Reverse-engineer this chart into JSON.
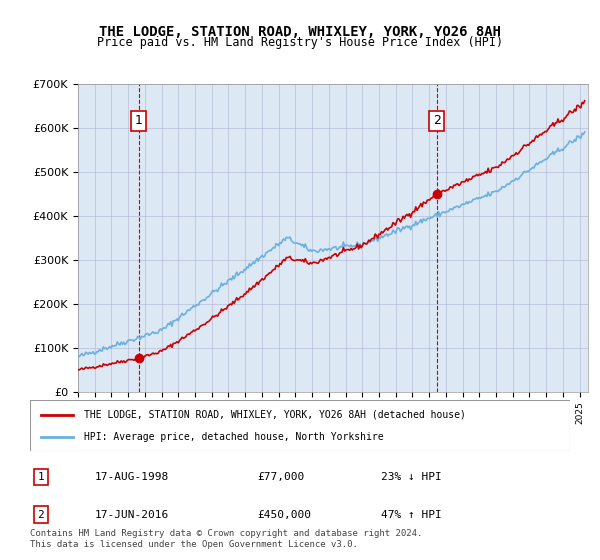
{
  "title1": "THE LODGE, STATION ROAD, WHIXLEY, YORK, YO26 8AH",
  "title2": "Price paid vs. HM Land Registry's House Price Index (HPI)",
  "background_color": "#dce9f5",
  "plot_bg_color": "#dce9f5",
  "hpi_color": "#6ab0e0",
  "price_color": "#cc0000",
  "marker_color": "#cc0000",
  "vline_color": "#cc0000",
  "sale1": {
    "year": 1998.625,
    "price": 77000,
    "label": "1"
  },
  "sale2": {
    "year": 2016.458,
    "price": 450000,
    "label": "2"
  },
  "ylim": [
    0,
    700000
  ],
  "yticks": [
    0,
    100000,
    200000,
    300000,
    400000,
    500000,
    600000,
    700000
  ],
  "ytick_labels": [
    "£0",
    "£100K",
    "£200K",
    "£300K",
    "£400K",
    "£500K",
    "£600K",
    "£700K"
  ],
  "xlim_start": 1995.0,
  "xlim_end": 2025.5,
  "legend_line1": "THE LODGE, STATION ROAD, WHIXLEY, YORK, YO26 8AH (detached house)",
  "legend_line2": "HPI: Average price, detached house, North Yorkshire",
  "table_row1": [
    "1",
    "17-AUG-1998",
    "£77,000",
    "23% ↓ HPI"
  ],
  "table_row2": [
    "2",
    "17-JUN-2016",
    "£450,000",
    "47% ↑ HPI"
  ],
  "footer": "Contains HM Land Registry data © Crown copyright and database right 2024.\nThis data is licensed under the Open Government Licence v3.0."
}
